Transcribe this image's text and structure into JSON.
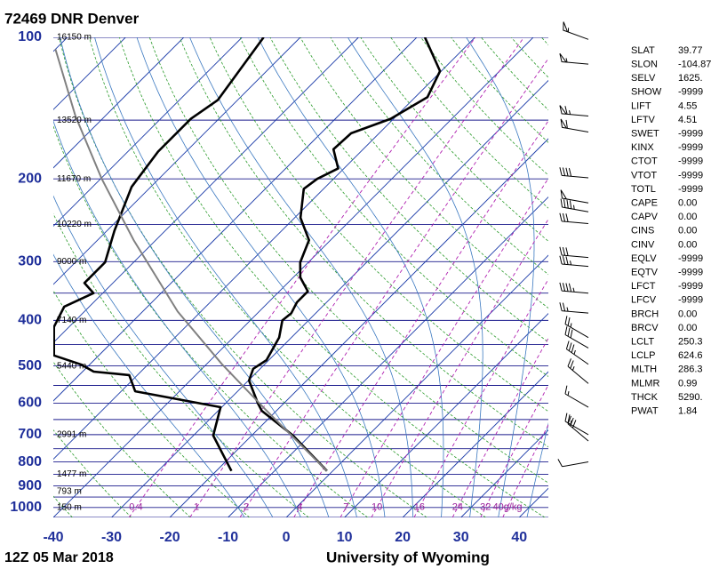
{
  "chart_data": {
    "type": "skew-t",
    "title": "72469 DNR Denver",
    "subtitle": "12Z 05 Mar 2018",
    "source": "University of Wyoming",
    "xlim": [
      -40,
      45
    ],
    "xticks": [
      -40,
      -30,
      -20,
      -10,
      0,
      10,
      20,
      30,
      40
    ],
    "ylim": [
      1050,
      100
    ],
    "yticks": [
      1000,
      900,
      800,
      700,
      600,
      500,
      400,
      300,
      200,
      100
    ],
    "log_y": true,
    "isobars": [
      100,
      150,
      200,
      250,
      300,
      350,
      400,
      450,
      500,
      550,
      600,
      650,
      700,
      750,
      800,
      850,
      900,
      950,
      1000,
      1050
    ],
    "isotherms": [
      -120,
      -110,
      -100,
      -90,
      -80,
      -70,
      -60,
      -50,
      -40,
      -30,
      -20,
      -10,
      0,
      10,
      20,
      30,
      40
    ],
    "dry_adiabats": [
      -40,
      -30,
      -20,
      -10,
      0,
      10,
      20,
      30,
      40,
      50,
      60,
      70,
      80,
      90,
      100,
      110,
      120,
      130,
      140,
      150,
      160,
      170,
      180
    ],
    "moist_adiabats": [
      -10,
      -5,
      0,
      5,
      10,
      15,
      20,
      25,
      30,
      35,
      40
    ],
    "mixing_ratios": [
      0.4,
      1,
      2,
      4,
      7,
      10,
      16,
      24,
      32,
      {
        "value": 40,
        "label": "40g/kg"
      }
    ],
    "heights": [
      {
        "pressure": 100,
        "label": "16150 m"
      },
      {
        "pressure": 150,
        "label": "13520 m"
      },
      {
        "pressure": 200,
        "label": "11670 m"
      },
      {
        "pressure": 250,
        "label": "10220 m"
      },
      {
        "pressure": 300,
        "label": "9000 m"
      },
      {
        "pressure": 400,
        "label": "7140 m"
      },
      {
        "pressure": 500,
        "label": "5440 m"
      },
      {
        "pressure": 700,
        "label": "2991 m"
      },
      {
        "pressure": 850,
        "label": "1477 m"
      },
      {
        "pressure": 925,
        "label": "793 m"
      },
      {
        "pressure": 1000,
        "label": "150 m"
      }
    ],
    "series": [
      {
        "color": "#000000",
        "pressure": [
          836,
          703,
          623,
          600,
          537,
          507,
          486,
          435,
          400,
          386,
          366,
          347,
          324,
          301,
          270,
          242,
          210,
          200,
          190,
          173,
          160,
          149,
          134,
          118,
          100
        ],
        "values": [
          -1.0,
          -12.9,
          -22.5,
          -24.5,
          -29.9,
          -31.2,
          -30.4,
          -32.1,
          -34.5,
          -34.2,
          -35.1,
          -35.1,
          -38.8,
          -41.4,
          -43.7,
          -49.0,
          -53.4,
          -52.8,
          -51.0,
          -55.1,
          -54.8,
          -50.5,
          -47.9,
          -50.2,
          -58.6
        ]
      },
      {
        "color": "#000000",
        "pressure": [
          836,
          703,
          612,
          566,
          523,
          514,
          496,
          475,
          413,
          374,
          350,
          333,
          301,
          258,
          208,
          175,
          149,
          136,
          100
        ],
        "values": [
          -17.4,
          -26.6,
          -30.2,
          -47.6,
          -51.4,
          -58.1,
          -61.6,
          -67.7,
          -72.6,
          -74.3,
          -71.6,
          -74.9,
          -74.9,
          -78.7,
          -83.3,
          -84.8,
          -84.8,
          -83.4,
          -86.3
        ]
      },
      {
        "color": "#808080",
        "pressure": [
          836,
          618,
          496,
          383,
          270,
          200,
          147,
          106
        ],
        "values": [
          -1.0,
          -22.2,
          -37.3,
          -54.0,
          -73.8,
          -89.8,
          -105.1,
          -120.0
        ]
      }
    ],
    "winds": {
      "pressure": [
        101,
        114,
        147,
        159,
        199,
        225,
        235,
        249,
        294,
        307,
        350,
        386,
        435,
        458,
        496,
        545,
        612,
        700,
        722,
        800
      ],
      "direction": [
        290,
        275,
        275,
        280,
        275,
        280,
        280,
        275,
        275,
        275,
        275,
        275,
        300,
        300,
        305,
        310,
        300,
        300,
        310,
        260
      ],
      "speed": [
        55,
        55,
        65,
        60,
        40,
        50,
        45,
        30,
        30,
        35,
        45,
        25,
        25,
        30,
        35,
        25,
        15,
        25,
        30,
        10
      ]
    }
  },
  "station_table": {
    "rows": [
      [
        "SLAT",
        "39.77"
      ],
      [
        "SLON",
        "-104.87"
      ],
      [
        "SELV",
        "1625."
      ],
      [
        "SHOW",
        "-9999"
      ],
      [
        "LIFT",
        "4.55"
      ],
      [
        "LFTV",
        "4.51"
      ],
      [
        "SWET",
        "-9999"
      ],
      [
        "KINX",
        "-9999"
      ],
      [
        "CTOT",
        "-9999"
      ],
      [
        "VTOT",
        "-9999"
      ],
      [
        "TOTL",
        "-9999"
      ],
      [
        "CAPE",
        "0.00"
      ],
      [
        "CAPV",
        "0.00"
      ],
      [
        "CINS",
        "0.00"
      ],
      [
        "CINV",
        "0.00"
      ],
      [
        "EQLV",
        "-9999"
      ],
      [
        "EQTV",
        "-9999"
      ],
      [
        "LFCT",
        "-9999"
      ],
      [
        "LFCV",
        "-9999"
      ],
      [
        "BRCH",
        "0.00"
      ],
      [
        "BRCV",
        "0.00"
      ],
      [
        "LCLT",
        "250.3"
      ],
      [
        "LCLP",
        "624.6"
      ],
      [
        "MLTH",
        "286.3"
      ],
      [
        "MLMR",
        "0.99"
      ],
      [
        "THCK",
        "5290."
      ],
      [
        "PWAT",
        "1.84"
      ]
    ]
  }
}
